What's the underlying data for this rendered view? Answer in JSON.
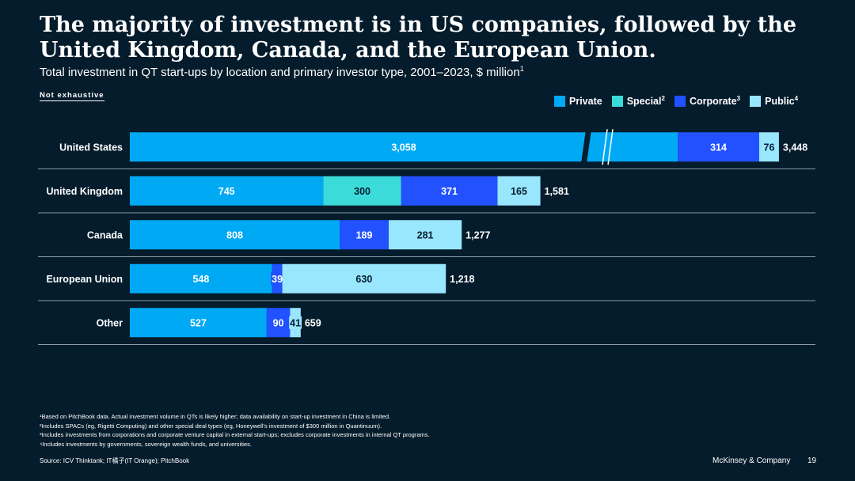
{
  "header": {
    "title": "The majority of investment is in US companies, followed by the United Kingdom, Canada, and the European Union.",
    "subtitle": "Total investment in QT start-ups by location and primary investor type, 2001–2023, $ million",
    "subtitle_sup": "1",
    "note": "Not exhaustive"
  },
  "legend": [
    {
      "label": "Private",
      "sup": "",
      "color": "#00a9f4"
    },
    {
      "label": "Special",
      "sup": "2",
      "color": "#3bdbd9"
    },
    {
      "label": "Corporate",
      "sup": "3",
      "color": "#2251ff"
    },
    {
      "label": "Public",
      "sup": "4",
      "color": "#99e6ff"
    }
  ],
  "chart_data": {
    "type": "bar",
    "orientation": "horizontal",
    "stacked": true,
    "title": "Total investment in QT start-ups by location and primary investor type, 2001–2023, $ million",
    "categories": [
      "United States",
      "United Kingdom",
      "Canada",
      "European Union",
      "Other"
    ],
    "series": [
      {
        "name": "Private",
        "values": [
          3058,
          745,
          808,
          548,
          527
        ]
      },
      {
        "name": "Special",
        "values": [
          0,
          300,
          0,
          0,
          0
        ]
      },
      {
        "name": "Corporate",
        "values": [
          314,
          371,
          189,
          39,
          90
        ]
      },
      {
        "name": "Public",
        "values": [
          76,
          165,
          281,
          630,
          41
        ]
      }
    ],
    "totals": [
      3448,
      1581,
      1277,
      1218,
      659
    ],
    "labels": {
      "values": [
        [
          "3,058",
          "",
          "314",
          "76"
        ],
        [
          "745",
          "300",
          "371",
          "165"
        ],
        [
          "808",
          "",
          "189",
          "281"
        ],
        [
          "548",
          "",
          "39",
          "630"
        ],
        [
          "527",
          "",
          "90",
          "41"
        ]
      ],
      "totals": [
        "3,448",
        "1,581",
        "1,277",
        "1,218",
        "659"
      ]
    },
    "axis_break": {
      "category": "United States",
      "series": "Private"
    },
    "xlabel": "",
    "ylabel": "",
    "legend_position": "top-right"
  },
  "footnotes": [
    "¹Based on PitchBook data. Actual investment volume in QTs is likely higher; data availability on start-up investment in China is limited.",
    "²Includes SPACs (eg, Rigetti Computing) and other special deal types (eg, Honeywell’s investment of $300 million in Quantinuum).",
    "³Includes investments from corporations and corporate venture capital in external start-ups; excludes corporate investments in internal QT programs.",
    "⁴Includes investments by governments, sovereign wealth funds, and universities."
  ],
  "source": "Source:  ICV Thinktank; IT橘子(IT Orange); PitchBook",
  "brand": "McKinsey & Company",
  "page_number": "19"
}
